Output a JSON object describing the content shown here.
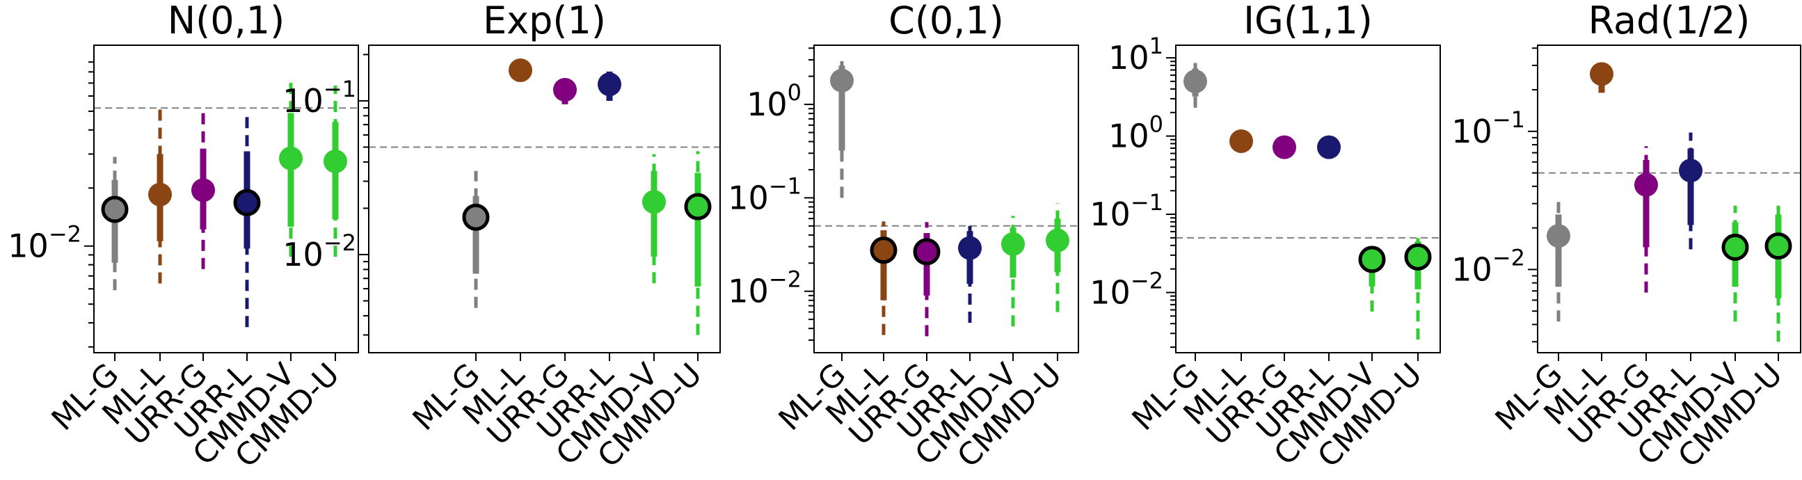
{
  "figure": {
    "background": "#ffffff"
  },
  "colors": {
    "ML-G": "#808080",
    "ML-L": "#8B4513",
    "URR-G": "#800080",
    "URR-L": "#191970",
    "CMMD-V": "#32CD32",
    "CMMD-U": "#32CD32",
    "reference_line": "#808080",
    "highlight_outline": "#000000"
  },
  "chart_data": [
    {
      "type": "scatter",
      "title": "N(0,1)",
      "yscale": "log",
      "ylim": [
        0.0028,
        0.11
      ],
      "yticks": [
        0.01
      ],
      "ytick_labels": [
        "10^-2"
      ],
      "categories": [
        "ML-G",
        "ML-L",
        "URR-G",
        "URR-L",
        "CMMD-V",
        "CMMD-U"
      ],
      "reference_line": 0.052,
      "points": [
        {
          "method": "ML-G",
          "value": 0.0155,
          "thick": [
            0.0082,
            0.022
          ],
          "thin": [
            0.0059,
            0.029
          ],
          "outlined": true
        },
        {
          "method": "ML-L",
          "value": 0.0185,
          "thick": [
            0.0106,
            0.03
          ],
          "thin": [
            0.0064,
            0.052
          ],
          "outlined": false
        },
        {
          "method": "URR-G",
          "value": 0.0195,
          "thick": [
            0.0122,
            0.032
          ],
          "thin": [
            0.0076,
            0.053
          ],
          "outlined": false
        },
        {
          "method": "URR-L",
          "value": 0.0168,
          "thick": [
            0.0097,
            0.031
          ],
          "thin": [
            0.0038,
            0.049
          ],
          "outlined": true
        },
        {
          "method": "CMMD-V",
          "value": 0.0285,
          "thick": [
            0.0126,
            0.049
          ],
          "thin": [
            0.0088,
            0.074
          ],
          "outlined": false
        },
        {
          "method": "CMMD-U",
          "value": 0.0275,
          "thick": [
            0.0138,
            0.044
          ],
          "thin": [
            0.0088,
            0.068
          ],
          "outlined": false
        }
      ]
    },
    {
      "type": "scatter",
      "title": "Exp(1)",
      "yscale": "log",
      "ylim": [
        0.0023,
        0.23
      ],
      "yticks": [
        0.01,
        0.1
      ],
      "ytick_labels": [
        "10^-2",
        "10^-1"
      ],
      "categories": [
        "ML-G",
        "ML-L",
        "URR-G",
        "URR-L",
        "CMMD-V",
        "CMMD-U"
      ],
      "reference_line": 0.05,
      "points": [
        {
          "method": "ML-G",
          "value": 0.0175,
          "thick": [
            0.0075,
            0.024
          ],
          "thin": [
            0.0045,
            0.035
          ],
          "outlined": true
        },
        {
          "method": "ML-L",
          "value": 0.158,
          "thick": null,
          "thin": null,
          "outlined": false
        },
        {
          "method": "URR-G",
          "value": 0.118,
          "thick": [
            0.095,
            0.13
          ],
          "thin": null,
          "outlined": false
        },
        {
          "method": "URR-L",
          "value": 0.128,
          "thick": [
            0.1,
            0.155
          ],
          "thin": null,
          "outlined": false
        },
        {
          "method": "CMMD-V",
          "value": 0.022,
          "thick": [
            0.0097,
            0.035
          ],
          "thin": [
            0.0065,
            0.045
          ],
          "outlined": false
        },
        {
          "method": "CMMD-U",
          "value": 0.0205,
          "thick": [
            0.0062,
            0.034
          ],
          "thin": [
            0.003,
            0.047
          ],
          "outlined": true
        }
      ]
    },
    {
      "type": "scatter",
      "title": "C(0,1)",
      "yscale": "log",
      "ylim": [
        0.0022,
        4.3
      ],
      "yticks": [
        0.01,
        0.1,
        1
      ],
      "ytick_labels": [
        "10^-2",
        "10^-1",
        "10^0"
      ],
      "categories": [
        "ML-G",
        "ML-L",
        "URR-G",
        "URR-L",
        "CMMD-V",
        "CMMD-U"
      ],
      "reference_line": 0.05,
      "points": [
        {
          "method": "ML-G",
          "value": 1.8,
          "thick": [
            0.32,
            2.6
          ],
          "thin": [
            0.1,
            2.9
          ],
          "outlined": false
        },
        {
          "method": "ML-L",
          "value": 0.0275,
          "thick": [
            0.008,
            0.045
          ],
          "thin": [
            0.0034,
            0.056
          ],
          "outlined": true
        },
        {
          "method": "URR-G",
          "value": 0.0265,
          "thick": [
            0.009,
            0.042
          ],
          "thin": [
            0.0033,
            0.055
          ],
          "outlined": true
        },
        {
          "method": "URR-L",
          "value": 0.029,
          "thick": [
            0.012,
            0.044
          ],
          "thin": [
            0.0046,
            0.05
          ],
          "outlined": false
        },
        {
          "method": "CMMD-V",
          "value": 0.032,
          "thick": [
            0.014,
            0.048
          ],
          "thin": [
            0.0042,
            0.064
          ],
          "outlined": false
        },
        {
          "method": "CMMD-U",
          "value": 0.035,
          "thick": [
            0.016,
            0.06
          ],
          "thin": [
            0.006,
            0.088
          ],
          "outlined": false
        }
      ]
    },
    {
      "type": "scatter",
      "title": "IG(1,1)",
      "yscale": "log",
      "ylim": [
        0.0017,
        14.5
      ],
      "yticks": [
        0.01,
        0.1,
        1,
        10
      ],
      "ytick_labels": [
        "10^-2",
        "10^-1",
        "10^0",
        "10^1"
      ],
      "categories": [
        "ML-G",
        "ML-L",
        "URR-G",
        "URR-L",
        "CMMD-V",
        "CMMD-U"
      ],
      "reference_line": 0.05,
      "points": [
        {
          "method": "ML-G",
          "value": 5.0,
          "thick": [
            3.2,
            7.3
          ],
          "thin": [
            2.3,
            8.6
          ],
          "outlined": false
        },
        {
          "method": "ML-L",
          "value": 0.86,
          "thick": null,
          "thin": null,
          "outlined": false
        },
        {
          "method": "URR-G",
          "value": 0.72,
          "thick": null,
          "thin": null,
          "outlined": false
        },
        {
          "method": "URR-L",
          "value": 0.72,
          "thick": null,
          "thin": null,
          "outlined": false
        },
        {
          "method": "CMMD-V",
          "value": 0.0265,
          "thick": [
            0.012,
            0.038
          ],
          "thin": [
            0.0057,
            0.044
          ],
          "outlined": true
        },
        {
          "method": "CMMD-U",
          "value": 0.0285,
          "thick": [
            0.011,
            0.045
          ],
          "thin": [
            0.0025,
            0.055
          ],
          "outlined": true
        }
      ]
    },
    {
      "type": "scatter",
      "title": "Rad(1/2)",
      "yscale": "log",
      "ylim": [
        0.0025,
        0.42
      ],
      "yticks": [
        0.01,
        0.1
      ],
      "ytick_labels": [
        "10^-2",
        "10^-1"
      ],
      "categories": [
        "ML-G",
        "ML-L",
        "URR-G",
        "URR-L",
        "CMMD-V",
        "CMMD-U"
      ],
      "reference_line": 0.05,
      "points": [
        {
          "method": "ML-G",
          "value": 0.0175,
          "thick": [
            0.0075,
            0.025
          ],
          "thin": [
            0.0042,
            0.031
          ],
          "outlined": false
        },
        {
          "method": "ML-L",
          "value": 0.26,
          "thick": [
            0.19,
            0.29
          ],
          "thin": null,
          "outlined": false
        },
        {
          "method": "URR-G",
          "value": 0.041,
          "thick": [
            0.0145,
            0.062
          ],
          "thin": [
            0.0068,
            0.078
          ],
          "outlined": false
        },
        {
          "method": "URR-L",
          "value": 0.052,
          "thick": [
            0.021,
            0.075
          ],
          "thin": [
            0.014,
            0.098
          ],
          "outlined": false
        },
        {
          "method": "CMMD-V",
          "value": 0.0145,
          "thick": [
            0.0075,
            0.022
          ],
          "thin": [
            0.0042,
            0.029
          ],
          "outlined": true
        },
        {
          "method": "CMMD-U",
          "value": 0.0148,
          "thick": [
            0.0062,
            0.025
          ],
          "thin": [
            0.003,
            0.029
          ],
          "outlined": true
        }
      ]
    }
  ]
}
